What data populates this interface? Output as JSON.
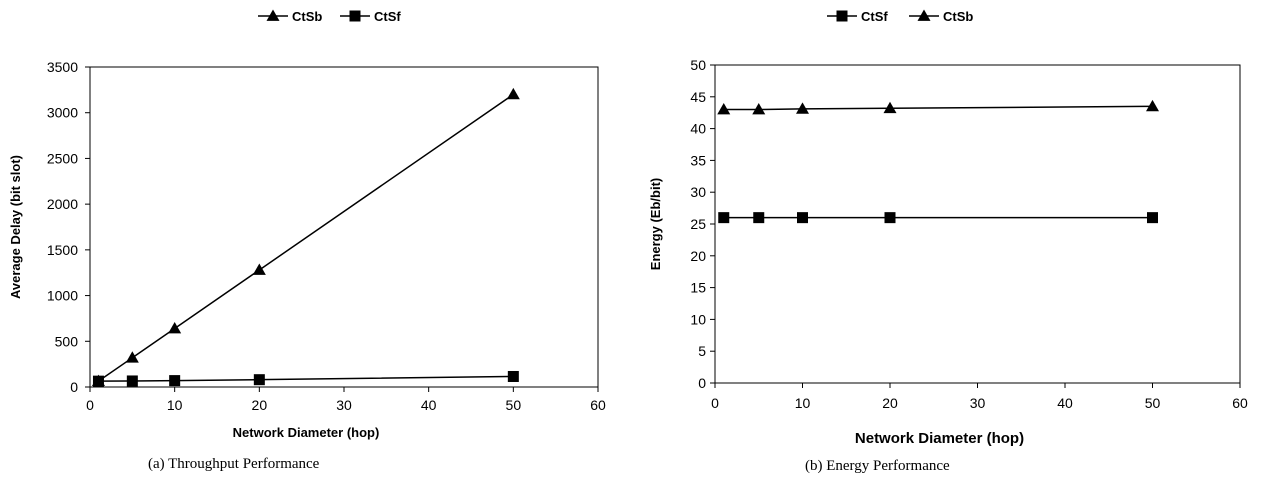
{
  "chart_data": [
    {
      "type": "line",
      "caption": "(a) Throughput Performance",
      "xlabel": "Network Diameter (hop)",
      "ylabel": "Average Delay (bit slot)",
      "xlim": [
        0,
        60
      ],
      "ylim": [
        0,
        3500
      ],
      "xticks": [
        0,
        10,
        20,
        30,
        40,
        50,
        60
      ],
      "yticks": [
        0,
        500,
        1000,
        1500,
        2000,
        2500,
        3000,
        3500
      ],
      "grid": false,
      "legend_position": "top",
      "series": [
        {
          "name": "CtSb",
          "marker": "triangle",
          "x": [
            1,
            5,
            10,
            20,
            50
          ],
          "y": [
            64,
            320,
            640,
            1280,
            3200
          ]
        },
        {
          "name": "CtSf",
          "marker": "square",
          "x": [
            1,
            5,
            10,
            20,
            50
          ],
          "y": [
            64,
            66,
            70,
            80,
            115
          ]
        }
      ]
    },
    {
      "type": "line",
      "caption": "(b) Energy Performance",
      "xlabel": "Network Diameter (hop)",
      "ylabel": "Energy (Eb/bit)",
      "xlim": [
        0,
        60
      ],
      "ylim": [
        0,
        50
      ],
      "xticks": [
        0,
        10,
        20,
        30,
        40,
        50,
        60
      ],
      "yticks": [
        0,
        5,
        10,
        15,
        20,
        25,
        30,
        35,
        40,
        45,
        50
      ],
      "grid": false,
      "legend_position": "top",
      "series": [
        {
          "name": "CtSf",
          "marker": "square",
          "x": [
            1,
            5,
            10,
            20,
            50
          ],
          "y": [
            26,
            26,
            26,
            26,
            26
          ]
        },
        {
          "name": "CtSb",
          "marker": "triangle",
          "x": [
            1,
            5,
            10,
            20,
            50
          ],
          "y": [
            43,
            43,
            43.1,
            43.2,
            43.5
          ]
        }
      ]
    }
  ]
}
